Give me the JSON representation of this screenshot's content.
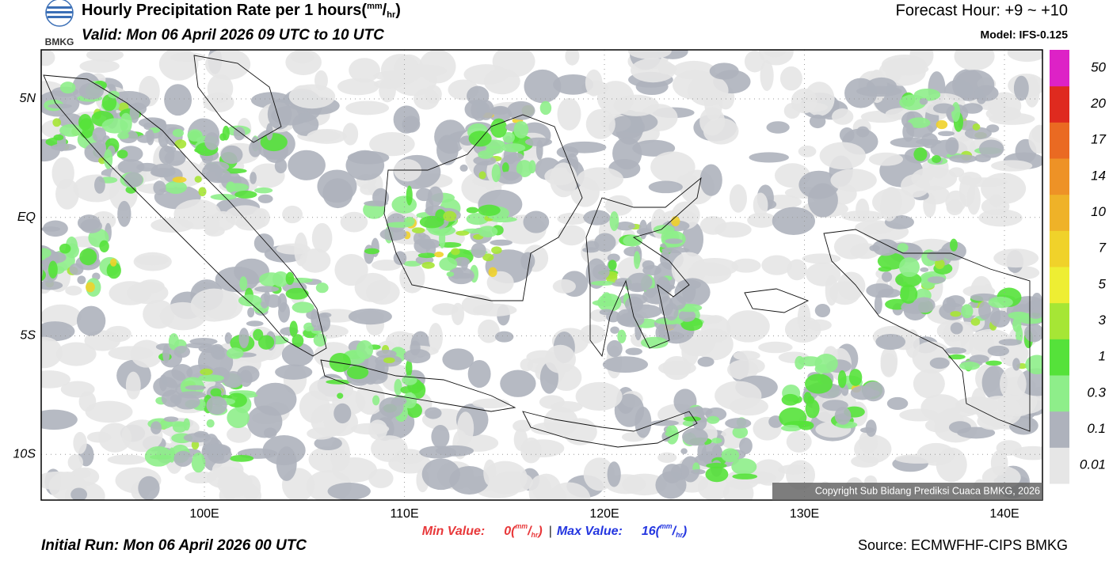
{
  "header": {
    "logo_text": "BMKG",
    "title": "Hourly Precipitation Rate per 1 hours",
    "title_unit": {
      "open": "(",
      "num": "mm",
      "slash": "/",
      "den": "hr",
      "close": ")"
    },
    "valid": "Valid: Mon 06 April 2026 09 UTC to 10 UTC",
    "forecast_hour": "Forecast Hour: +9 ~ +10",
    "model": "Model: IFS-0.125"
  },
  "map": {
    "xlim": [
      91.84,
      141.9
    ],
    "ylim": [
      -11.93,
      7.07
    ],
    "grid": true,
    "xticks": [
      {
        "value": 100,
        "label": "100E"
      },
      {
        "value": 110,
        "label": "110E"
      },
      {
        "value": 120,
        "label": "120E"
      },
      {
        "value": 130,
        "label": "130E"
      },
      {
        "value": 140,
        "label": "140E"
      }
    ],
    "yticks": [
      {
        "value": 5,
        "label": "5N"
      },
      {
        "value": 0,
        "label": "EQ"
      },
      {
        "value": -5,
        "label": "5S"
      },
      {
        "value": -10,
        "label": "10S"
      }
    ],
    "copyright": "Copyright Sub Bidang Prediksi Cuaca BMKG, 2026"
  },
  "colorbar": {
    "levels": [
      {
        "value": 0.01,
        "label": "0.01"
      },
      {
        "value": 0.1,
        "label": "0.1"
      },
      {
        "value": 0.3,
        "label": "0.3"
      },
      1,
      3,
      5,
      7,
      10,
      14,
      17,
      20,
      50
    ],
    "colors": [
      "#e6e6e6",
      "#aeb2bc",
      "#8eee8a",
      "#55e23a",
      "#a6e635",
      "#eeee33",
      "#f0d22a",
      "#efb228",
      "#ee9226",
      "#ea6a22",
      "#df2a1f",
      "#dd22c6"
    ]
  },
  "footer": {
    "min_label": "Min Value:",
    "min_value": "0",
    "unit": {
      "open": "(",
      "num": "mm",
      "slash": "/",
      "den": "hr",
      "close": ")"
    },
    "separator": "|",
    "max_label": "Max Value:",
    "max_value": "16",
    "initial_run": "Initial Run: Mon 06 April 2026 00 UTC",
    "source": "Source: ECMWFHF-CIPS BMKG"
  }
}
